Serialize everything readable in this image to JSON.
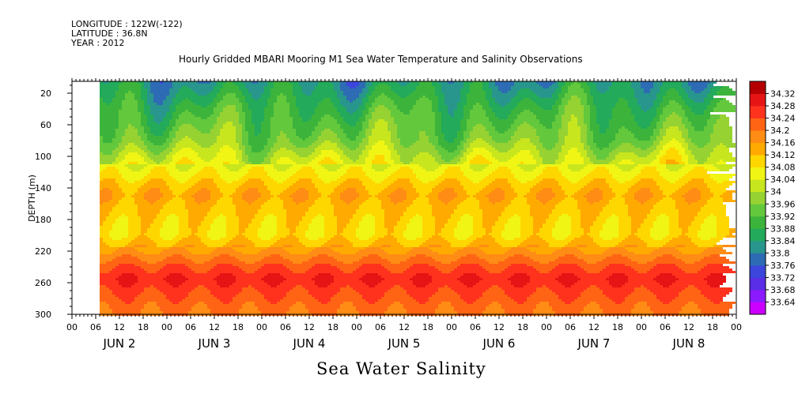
{
  "header": {
    "longitude": "LONGITUDE : 122W(-122)",
    "latitude": "LATITUDE : 36.8N",
    "year": "YEAR : 2012"
  },
  "chart_data": {
    "type": "heatmap",
    "title": "Hourly Gridded MBARI Mooring M1 Sea Water Temperature and Salinity Observations",
    "xlabel": "Sea Water Salinity",
    "ylabel": "DEPTH (m)",
    "ylim": [
      300,
      5
    ],
    "y_ticks": [
      20,
      60,
      100,
      140,
      180,
      220,
      260,
      300
    ],
    "x_hour_ticks": [
      "00",
      "06",
      "12",
      "18",
      "00",
      "06",
      "12",
      "18",
      "00",
      "06",
      "12",
      "18",
      "00",
      "06",
      "12",
      "18",
      "00",
      "06",
      "12",
      "18",
      "00",
      "06",
      "12",
      "18",
      "00",
      "06",
      "12",
      "18",
      "00"
    ],
    "x_day_labels": [
      "JUN  2",
      "JUN  3",
      "JUN  4",
      "JUN  5",
      "JUN  6",
      "JUN  7",
      "JUN  8"
    ],
    "x_range_hours": [
      0,
      168
    ],
    "data_start_hour": 7,
    "colorbar": {
      "min": 33.64,
      "max": 34.32,
      "step": 0.04,
      "labels": [
        "34.32",
        "34.28",
        "34.24",
        "34.2",
        "34.16",
        "34.12",
        "34.08",
        "34.04",
        "34",
        "33.96",
        "33.92",
        "33.88",
        "33.84",
        "33.8",
        "33.76",
        "33.72",
        "33.68",
        "33.64"
      ],
      "colors": [
        "#cc00ff",
        "#8c1aff",
        "#5a2ee6",
        "#3c46dc",
        "#2d6cb4",
        "#28968c",
        "#23aa5a",
        "#3cb43c",
        "#64c83c",
        "#96d232",
        "#c8e61e",
        "#f0f514",
        "#ffd700",
        "#ffaa00",
        "#ff8c14",
        "#ff6414",
        "#ff321e",
        "#e61414",
        "#b40000"
      ]
    },
    "salinity_profile": {
      "depth": [
        5,
        20,
        40,
        60,
        80,
        100,
        120,
        140,
        150,
        160,
        180,
        200,
        220,
        240,
        255,
        270,
        285,
        300
      ],
      "salinity": [
        33.83,
        33.86,
        33.9,
        33.93,
        33.96,
        34.02,
        34.07,
        34.13,
        34.15,
        34.13,
        34.1,
        34.09,
        34.16,
        34.24,
        34.28,
        34.25,
        34.22,
        34.2
      ]
    }
  }
}
